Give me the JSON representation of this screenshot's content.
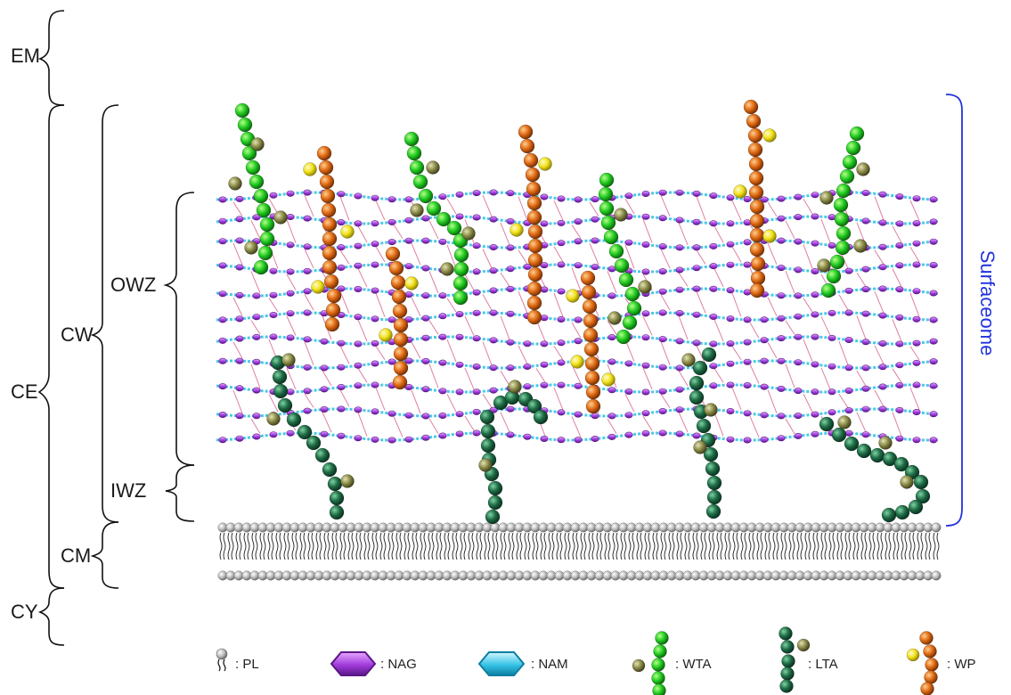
{
  "regions": {
    "em": "EM",
    "ce": "CE",
    "cy": "CY",
    "cw": "CW",
    "cm": "CM",
    "owz": "OWZ",
    "iwz": "IWZ",
    "surfaceome": "Surfaceome"
  },
  "legend": {
    "pl": ": PL",
    "nag": ": NAG",
    "nam": ": NAM",
    "wta": ": WTA",
    "lta": ": LTA",
    "wp": ": WP"
  },
  "colors": {
    "nag": "#7b2fbf",
    "nam": "#35c3e6",
    "wta": "#22cc22",
    "lta": "#1e6b45",
    "wp": "#e06a14",
    "sugar": "#f2e21a",
    "olive": "#8a8a48",
    "lipid": "#b9b9b9",
    "surfaceome_bracket": "#2233dd",
    "crosslink": "#c2185b"
  },
  "icons": {
    "pl": "phospholipid-icon",
    "nag": "nag-hexagon-icon",
    "nam": "nam-hexagon-icon",
    "wta": "wta-chain-icon",
    "lta": "lta-chain-icon",
    "wp": "wp-chain-icon"
  }
}
